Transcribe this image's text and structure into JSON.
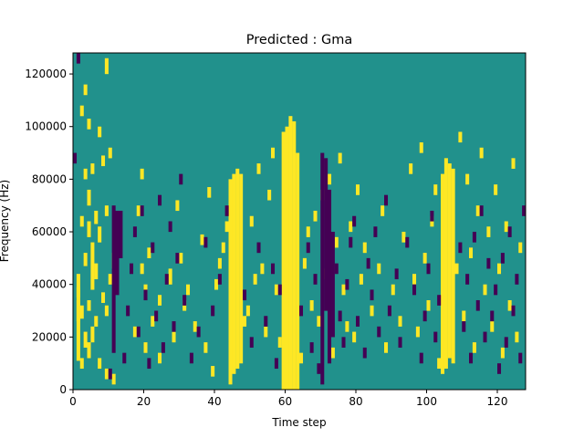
{
  "chart_data": {
    "type": "heatmap",
    "title": "Predicted : Gma",
    "xlabel": "Time step",
    "ylabel": "Frequency (Hz)",
    "xlim": [
      0,
      128
    ],
    "ylim": [
      0,
      128000
    ],
    "x_ticks": [
      "0",
      "20",
      "40",
      "60",
      "80",
      "100",
      "120"
    ],
    "y_ticks": [
      "0",
      "20000",
      "40000",
      "60000",
      "80000",
      "100000",
      "120000"
    ],
    "n_time_steps": 128,
    "n_freq_bins": 128,
    "cell_value_levels": [
      -1,
      0,
      1
    ],
    "colors": {
      "-1": "#440154",
      "0": "#21918c",
      "1": "#fde725"
    },
    "cells_high": [
      [
        1,
        11,
        44
      ],
      [
        1,
        26,
        34
      ],
      [
        1,
        35,
        39
      ],
      [
        2,
        8,
        12
      ],
      [
        2,
        27,
        32
      ],
      [
        2,
        62,
        66
      ],
      [
        2,
        104,
        108
      ],
      [
        3,
        16,
        22
      ],
      [
        3,
        47,
        52
      ],
      [
        3,
        80,
        84
      ],
      [
        3,
        112,
        116
      ],
      [
        4,
        12,
        18
      ],
      [
        4,
        30,
        34
      ],
      [
        4,
        58,
        64
      ],
      [
        4,
        70,
        76
      ],
      [
        4,
        99,
        103
      ],
      [
        5,
        18,
        24
      ],
      [
        5,
        38,
        56
      ],
      [
        5,
        82,
        86
      ],
      [
        6,
        24,
        28
      ],
      [
        6,
        42,
        48
      ],
      [
        6,
        63,
        68
      ],
      [
        7,
        8,
        12
      ],
      [
        7,
        56,
        62
      ],
      [
        7,
        96,
        100
      ],
      [
        8,
        33,
        37
      ],
      [
        8,
        85,
        89
      ],
      [
        9,
        4,
        8
      ],
      [
        9,
        28,
        32
      ],
      [
        9,
        66,
        70
      ],
      [
        9,
        120,
        126
      ],
      [
        10,
        40,
        44
      ],
      [
        10,
        88,
        92
      ],
      [
        11,
        46,
        52
      ],
      [
        11,
        2,
        6
      ],
      [
        17,
        20,
        24
      ],
      [
        18,
        66,
        70
      ],
      [
        19,
        44,
        48
      ],
      [
        19,
        80,
        84
      ],
      [
        20,
        14,
        18
      ],
      [
        20,
        35,
        40
      ],
      [
        21,
        50,
        54
      ],
      [
        22,
        24,
        28
      ],
      [
        24,
        10,
        14
      ],
      [
        24,
        32,
        36
      ],
      [
        27,
        40,
        46
      ],
      [
        28,
        18,
        22
      ],
      [
        29,
        68,
        72
      ],
      [
        30,
        48,
        52
      ],
      [
        31,
        30,
        34
      ],
      [
        32,
        36,
        40
      ],
      [
        34,
        22,
        26
      ],
      [
        36,
        55,
        59
      ],
      [
        37,
        14,
        18
      ],
      [
        38,
        73,
        77
      ],
      [
        39,
        5,
        9
      ],
      [
        40,
        38,
        42
      ],
      [
        41,
        46,
        50
      ],
      [
        42,
        52,
        56
      ],
      [
        43,
        60,
        64
      ],
      [
        44,
        2,
        80
      ],
      [
        45,
        6,
        82
      ],
      [
        46,
        8,
        84
      ],
      [
        47,
        10,
        82
      ],
      [
        48,
        24,
        28
      ],
      [
        49,
        28,
        32
      ],
      [
        50,
        62,
        66
      ],
      [
        51,
        40,
        44
      ],
      [
        52,
        82,
        86
      ],
      [
        53,
        44,
        48
      ],
      [
        54,
        20,
        24
      ],
      [
        55,
        72,
        76
      ],
      [
        56,
        88,
        92
      ],
      [
        57,
        36,
        40
      ],
      [
        58,
        16,
        20
      ],
      [
        59,
        0,
        98
      ],
      [
        60,
        0,
        100
      ],
      [
        61,
        0,
        104
      ],
      [
        62,
        0,
        102
      ],
      [
        63,
        0,
        90
      ],
      [
        64,
        10,
        14
      ],
      [
        65,
        46,
        50
      ],
      [
        66,
        58,
        62
      ],
      [
        67,
        30,
        34
      ],
      [
        68,
        64,
        68
      ],
      [
        69,
        24,
        28
      ],
      [
        70,
        72,
        76
      ],
      [
        71,
        42,
        46
      ],
      [
        72,
        78,
        82
      ],
      [
        73,
        12,
        16
      ],
      [
        74,
        54,
        58
      ],
      [
        75,
        86,
        90
      ],
      [
        76,
        36,
        40
      ],
      [
        77,
        22,
        26
      ],
      [
        78,
        60,
        64
      ],
      [
        79,
        18,
        22
      ],
      [
        80,
        74,
        78
      ],
      [
        81,
        40,
        44
      ],
      [
        82,
        52,
        56
      ],
      [
        84,
        28,
        32
      ],
      [
        86,
        44,
        48
      ],
      [
        87,
        66,
        70
      ],
      [
        88,
        14,
        18
      ],
      [
        90,
        36,
        40
      ],
      [
        92,
        24,
        28
      ],
      [
        93,
        56,
        60
      ],
      [
        95,
        82,
        86
      ],
      [
        96,
        40,
        44
      ],
      [
        97,
        20,
        24
      ],
      [
        98,
        90,
        94
      ],
      [
        99,
        48,
        52
      ],
      [
        100,
        30,
        34
      ],
      [
        101,
        62,
        66
      ],
      [
        102,
        74,
        78
      ],
      [
        103,
        8,
        12
      ],
      [
        104,
        6,
        82
      ],
      [
        105,
        8,
        88
      ],
      [
        106,
        12,
        86
      ],
      [
        107,
        10,
        84
      ],
      [
        108,
        44,
        48
      ],
      [
        109,
        94,
        98
      ],
      [
        110,
        26,
        30
      ],
      [
        111,
        78,
        82
      ],
      [
        112,
        50,
        54
      ],
      [
        113,
        14,
        18
      ],
      [
        114,
        66,
        70
      ],
      [
        115,
        88,
        92
      ],
      [
        116,
        36,
        40
      ],
      [
        117,
        58,
        62
      ],
      [
        118,
        22,
        26
      ],
      [
        119,
        74,
        78
      ],
      [
        120,
        44,
        48
      ],
      [
        121,
        12,
        16
      ],
      [
        122,
        60,
        64
      ],
      [
        123,
        30,
        34
      ],
      [
        124,
        84,
        88
      ],
      [
        125,
        18,
        22
      ],
      [
        126,
        52,
        56
      ]
    ],
    "cells_low": [
      [
        0,
        86,
        90
      ],
      [
        1,
        124,
        128
      ],
      [
        10,
        4,
        8
      ],
      [
        11,
        14,
        70
      ],
      [
        12,
        36,
        68
      ],
      [
        13,
        50,
        68
      ],
      [
        14,
        10,
        14
      ],
      [
        15,
        28,
        32
      ],
      [
        16,
        44,
        48
      ],
      [
        17,
        58,
        62
      ],
      [
        18,
        20,
        24
      ],
      [
        19,
        66,
        70
      ],
      [
        20,
        34,
        38
      ],
      [
        21,
        8,
        12
      ],
      [
        22,
        52,
        56
      ],
      [
        23,
        26,
        30
      ],
      [
        24,
        70,
        74
      ],
      [
        25,
        14,
        18
      ],
      [
        26,
        40,
        44
      ],
      [
        27,
        60,
        64
      ],
      [
        28,
        22,
        26
      ],
      [
        29,
        48,
        52
      ],
      [
        30,
        78,
        82
      ],
      [
        31,
        32,
        36
      ],
      [
        33,
        10,
        14
      ],
      [
        35,
        20,
        24
      ],
      [
        37,
        54,
        58
      ],
      [
        39,
        28,
        32
      ],
      [
        41,
        40,
        44
      ],
      [
        43,
        66,
        70
      ],
      [
        48,
        34,
        38
      ],
      [
        50,
        16,
        20
      ],
      [
        52,
        52,
        56
      ],
      [
        54,
        24,
        28
      ],
      [
        56,
        44,
        48
      ],
      [
        57,
        8,
        12
      ],
      [
        58,
        36,
        40
      ],
      [
        64,
        28,
        32
      ],
      [
        66,
        52,
        56
      ],
      [
        67,
        14,
        18
      ],
      [
        68,
        40,
        44
      ],
      [
        69,
        6,
        10
      ],
      [
        70,
        2,
        90
      ],
      [
        71,
        30,
        88
      ],
      [
        72,
        10,
        76
      ],
      [
        73,
        20,
        60
      ],
      [
        74,
        44,
        48
      ],
      [
        75,
        26,
        30
      ],
      [
        76,
        16,
        20
      ],
      [
        77,
        38,
        42
      ],
      [
        78,
        54,
        58
      ],
      [
        79,
        62,
        66
      ],
      [
        80,
        24,
        28
      ],
      [
        82,
        12,
        16
      ],
      [
        83,
        46,
        50
      ],
      [
        84,
        34,
        38
      ],
      [
        85,
        58,
        62
      ],
      [
        86,
        20,
        24
      ],
      [
        88,
        70,
        74
      ],
      [
        89,
        28,
        32
      ],
      [
        91,
        42,
        46
      ],
      [
        92,
        16,
        20
      ],
      [
        94,
        54,
        58
      ],
      [
        96,
        36,
        40
      ],
      [
        98,
        10,
        14
      ],
      [
        99,
        26,
        30
      ],
      [
        100,
        44,
        48
      ],
      [
        101,
        64,
        68
      ],
      [
        102,
        18,
        22
      ],
      [
        103,
        32,
        36
      ],
      [
        109,
        52,
        56
      ],
      [
        110,
        22,
        26
      ],
      [
        111,
        40,
        44
      ],
      [
        112,
        10,
        14
      ],
      [
        113,
        56,
        60
      ],
      [
        114,
        30,
        34
      ],
      [
        115,
        66,
        70
      ],
      [
        116,
        18,
        22
      ],
      [
        117,
        46,
        50
      ],
      [
        118,
        26,
        30
      ],
      [
        119,
        36,
        40
      ],
      [
        120,
        6,
        10
      ],
      [
        121,
        48,
        52
      ],
      [
        122,
        16,
        20
      ],
      [
        123,
        58,
        62
      ],
      [
        124,
        28,
        32
      ],
      [
        125,
        40,
        44
      ],
      [
        126,
        10,
        14
      ],
      [
        127,
        66,
        70
      ]
    ]
  }
}
